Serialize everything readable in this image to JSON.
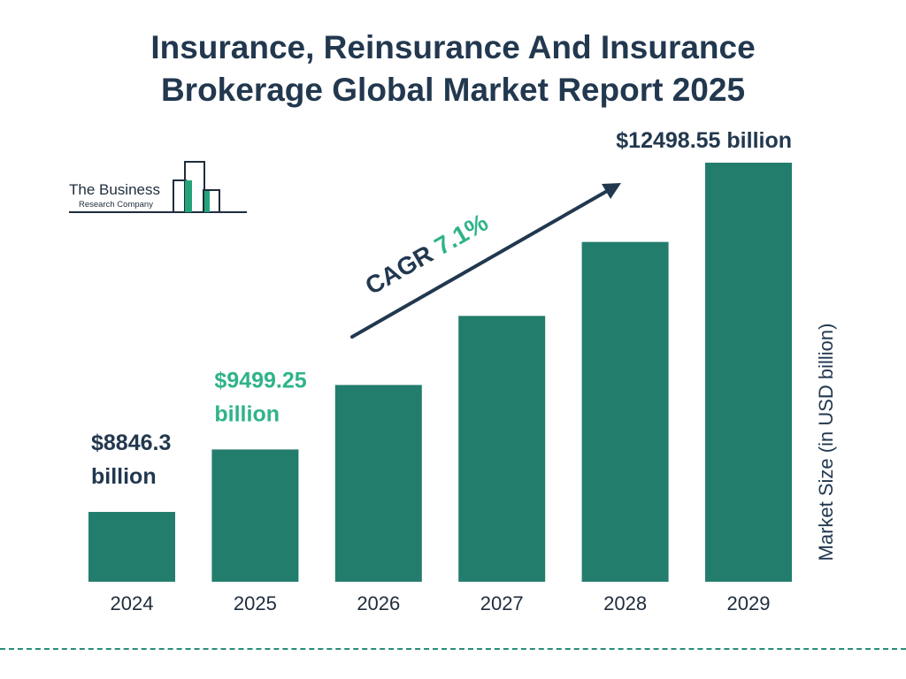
{
  "title_lines": [
    "Insurance, Reinsurance And Insurance",
    "Brokerage Global Market Report 2025"
  ],
  "logo": {
    "name": "The Business",
    "subtitle": "Research Company",
    "accent_color": "#22a37a"
  },
  "chart_data": {
    "type": "bar",
    "categories": [
      "2024",
      "2025",
      "2026",
      "2027",
      "2028",
      "2029"
    ],
    "values": [
      8846.3,
      9499.25,
      10173.7,
      10896.0,
      11669.6,
      12498.55
    ],
    "ylabel": "Market Size (in USD billion)",
    "value_labels": [
      {
        "index": 0,
        "lines": [
          "$8846.3",
          "billion"
        ],
        "color": "#22384f"
      },
      {
        "index": 1,
        "lines": [
          "$9499.25",
          "billion"
        ],
        "color": "#2fb38a"
      },
      {
        "index": 5,
        "lines": [
          "$12498.55 billion"
        ],
        "color": "#22384f"
      }
    ],
    "cagr": {
      "label": "CAGR",
      "value": "7.1%"
    },
    "bar_color": "#237d6d",
    "grid": false
  }
}
